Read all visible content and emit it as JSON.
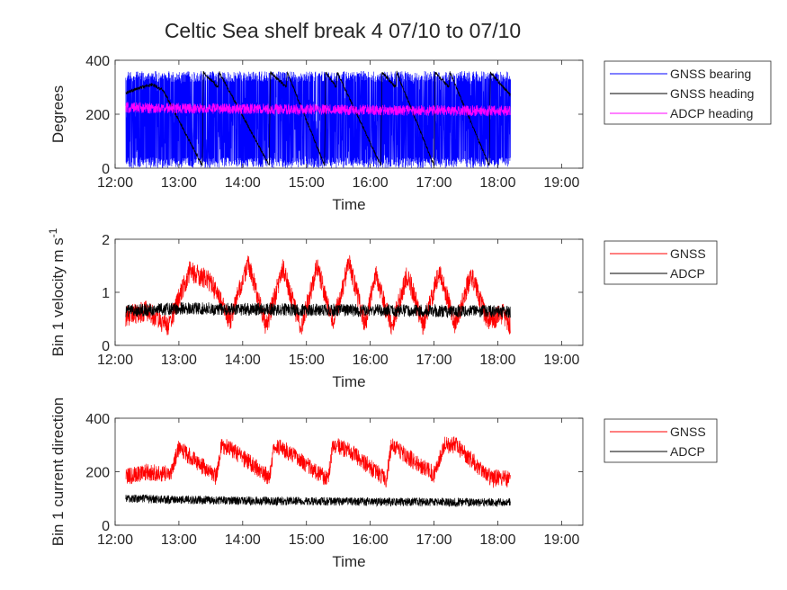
{
  "figure": {
    "title": "Celtic Sea shelf break 4 07/10 to 07/10"
  },
  "chart_data": [
    {
      "type": "line",
      "xlabel": "Time",
      "ylabel": "Degrees",
      "xlim": [
        "12:00",
        "19:20"
      ],
      "ylim": [
        0,
        400
      ],
      "xticks": [
        "12:00",
        "13:00",
        "14:00",
        "15:00",
        "16:00",
        "17:00",
        "18:00",
        "19:00"
      ],
      "yticks": [
        0,
        200,
        400
      ],
      "legend_position": "outside-right-top",
      "series": [
        {
          "name": "GNSS bearing",
          "color": "#0000ff",
          "x": [
            "12:10",
            "18:12"
          ],
          "y_range": [
            0,
            360
          ],
          "description_values": {
            "min": 0,
            "max": 360
          }
        },
        {
          "name": "GNSS heading",
          "color": "#000000",
          "x": [
            "12:10",
            "12:25",
            "12:35",
            "12:45",
            "13:22",
            "13:23",
            "13:37",
            "13:38",
            "14:25",
            "14:26",
            "14:41",
            "14:42",
            "15:17",
            "15:18",
            "15:28",
            "15:29",
            "16:10",
            "16:11",
            "16:24",
            "16:25",
            "17:00",
            "17:01",
            "17:14",
            "17:15",
            "17:52",
            "17:53",
            "18:12"
          ],
          "y": [
            280,
            300,
            310,
            290,
            10,
            355,
            300,
            355,
            10,
            355,
            300,
            355,
            10,
            355,
            300,
            355,
            10,
            355,
            300,
            355,
            10,
            355,
            300,
            355,
            10,
            355,
            270
          ]
        },
        {
          "name": "ADCP heading",
          "color": "#ff00ff",
          "x": [
            "12:10",
            "13:00",
            "14:00",
            "15:00",
            "16:00",
            "17:00",
            "18:12"
          ],
          "y": [
            225,
            222,
            220,
            218,
            216,
            214,
            212
          ]
        }
      ]
    },
    {
      "type": "line",
      "xlabel": "Time",
      "ylabel": "Bin 1 velocity m s",
      "ylabel_superscript": "-1",
      "xlim": [
        "12:00",
        "19:20"
      ],
      "ylim": [
        0,
        2
      ],
      "xticks": [
        "12:00",
        "13:00",
        "14:00",
        "15:00",
        "16:00",
        "17:00",
        "18:00",
        "19:00"
      ],
      "yticks": [
        0,
        1,
        2
      ],
      "legend_position": "outside-right-top",
      "series": [
        {
          "name": "GNSS",
          "color": "#ff0000",
          "x": [
            "12:10",
            "12:30",
            "12:50",
            "13:10",
            "13:30",
            "13:48",
            "14:05",
            "14:22",
            "14:38",
            "14:55",
            "15:10",
            "15:25",
            "15:40",
            "15:55",
            "16:05",
            "16:20",
            "16:35",
            "16:50",
            "17:05",
            "17:20",
            "17:35",
            "17:50",
            "18:05",
            "18:12"
          ],
          "y": [
            0.55,
            0.65,
            0.35,
            1.4,
            1.2,
            0.45,
            1.55,
            0.35,
            1.45,
            0.3,
            1.5,
            0.4,
            1.55,
            0.4,
            1.35,
            0.35,
            1.35,
            0.35,
            1.4,
            0.4,
            1.35,
            0.45,
            0.6,
            0.35
          ]
        },
        {
          "name": "ADCP",
          "color": "#000000",
          "x": [
            "12:10",
            "13:00",
            "14:00",
            "15:00",
            "16:00",
            "17:00",
            "18:12"
          ],
          "y": [
            0.65,
            0.7,
            0.68,
            0.67,
            0.66,
            0.65,
            0.64
          ]
        }
      ]
    },
    {
      "type": "line",
      "xlabel": "Time",
      "ylabel": "Bin 1 current direction",
      "xlim": [
        "12:00",
        "19:20"
      ],
      "ylim": [
        0,
        400
      ],
      "xticks": [
        "12:00",
        "13:00",
        "14:00",
        "15:00",
        "16:00",
        "17:00",
        "18:00",
        "19:00"
      ],
      "yticks": [
        0,
        200,
        400
      ],
      "legend_position": "outside-right-top",
      "series": [
        {
          "name": "GNSS",
          "color": "#ff0000",
          "x": [
            "12:10",
            "12:30",
            "12:52",
            "13:00",
            "13:35",
            "13:40",
            "13:50",
            "14:25",
            "14:30",
            "14:45",
            "15:20",
            "15:25",
            "15:40",
            "16:15",
            "16:20",
            "16:30",
            "17:00",
            "17:10",
            "17:20",
            "17:55",
            "18:00",
            "18:12"
          ],
          "y": [
            180,
            200,
            190,
            290,
            180,
            300,
            280,
            180,
            300,
            270,
            170,
            300,
            280,
            170,
            300,
            270,
            190,
            300,
            300,
            170,
            180,
            170
          ]
        },
        {
          "name": "ADCP",
          "color": "#000000",
          "x": [
            "12:10",
            "13:00",
            "14:00",
            "15:00",
            "16:00",
            "17:00",
            "18:12"
          ],
          "y": [
            100,
            95,
            92,
            90,
            88,
            86,
            85
          ]
        }
      ]
    }
  ]
}
